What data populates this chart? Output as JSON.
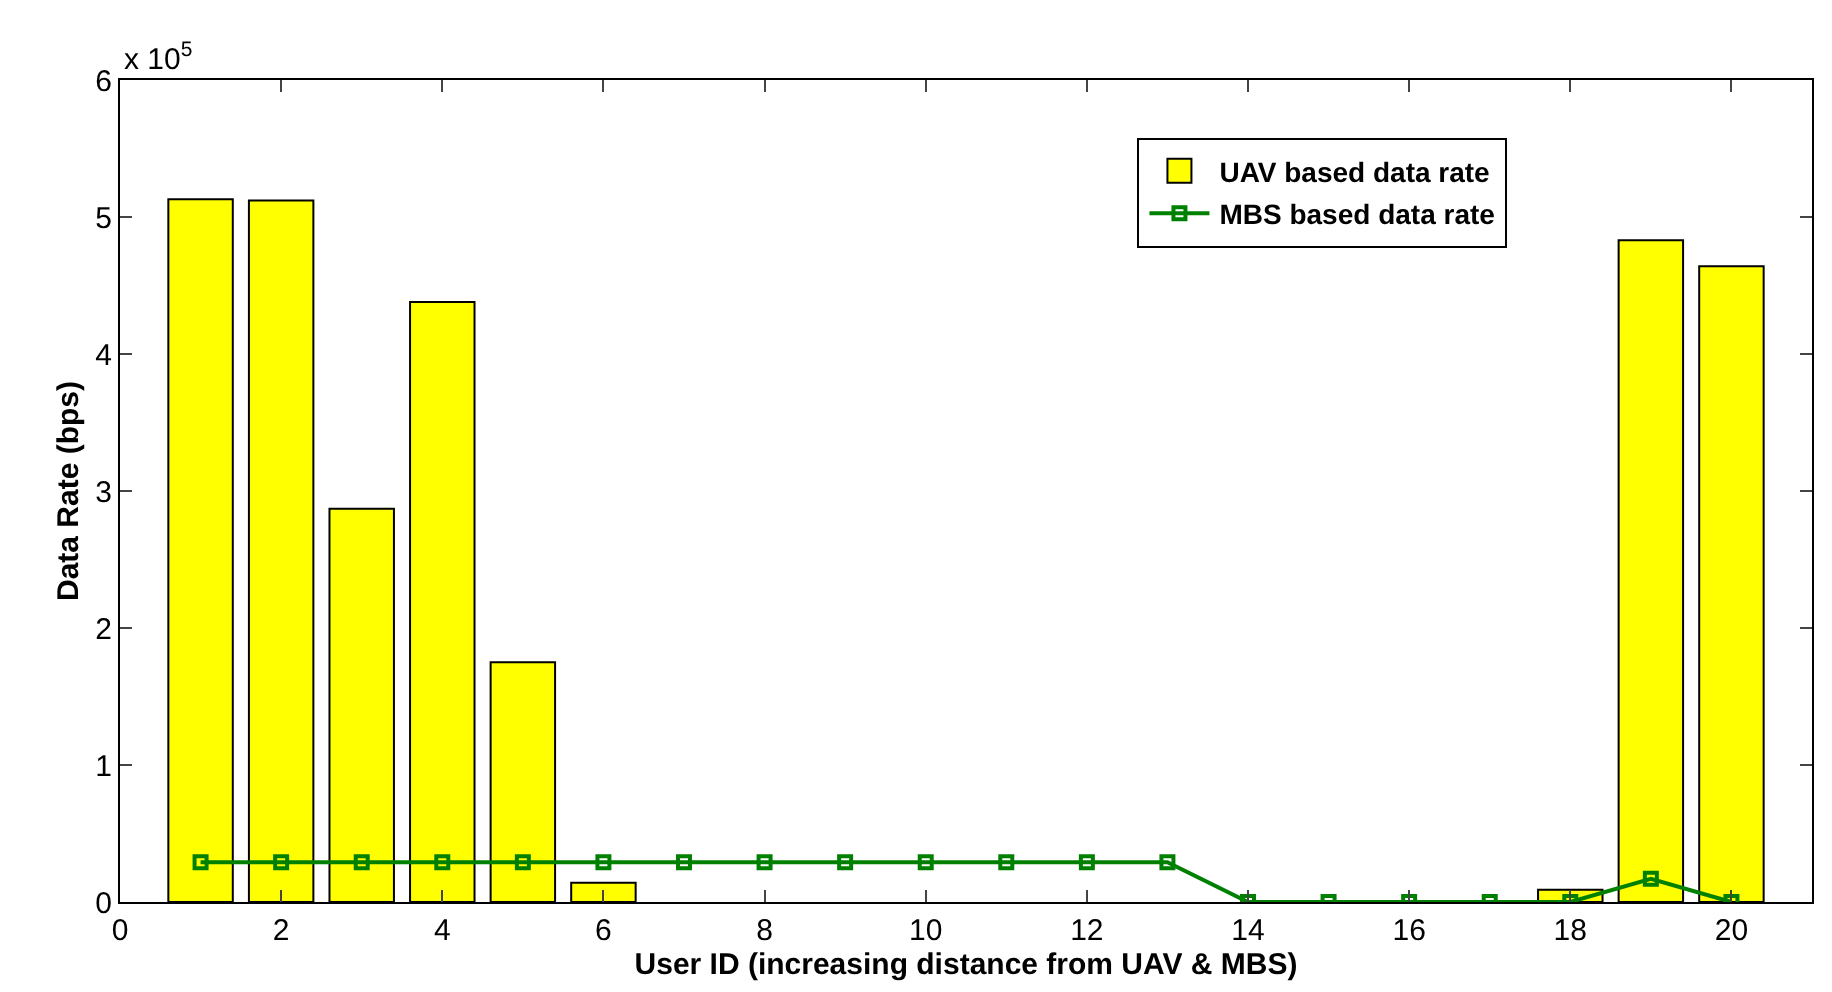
{
  "chart_data": {
    "type": "bar",
    "xlabel": "User ID (increasing distance from UAV & MBS)",
    "ylabel": "Data Rate (bps)",
    "x": [
      1,
      2,
      3,
      4,
      5,
      6,
      7,
      8,
      9,
      10,
      11,
      12,
      13,
      14,
      15,
      16,
      17,
      18,
      19,
      20
    ],
    "series": [
      {
        "name": "UAV based data rate",
        "color": "#ffff00",
        "values": [
          5.13,
          5.12,
          2.87,
          4.38,
          1.75,
          0.14,
          null,
          null,
          null,
          null,
          null,
          null,
          null,
          null,
          null,
          null,
          null,
          0.09,
          4.83,
          4.64
        ]
      },
      {
        "name": "MBS based data rate",
        "type": "line",
        "color": "#008000",
        "marker": "square",
        "line_style": "solid",
        "values": [
          0.29,
          0.29,
          0.29,
          0.29,
          0.29,
          0.29,
          0.29,
          0.29,
          0.29,
          0.29,
          0.29,
          0.29,
          0.29,
          0,
          0,
          0,
          0,
          0,
          0.17,
          0
        ]
      }
    ],
    "annotations": [
      "x 10$^{5}$"
    ],
    "xlim": [
      0,
      21
    ],
    "xticks": [
      0,
      2,
      4,
      6,
      8,
      10,
      12,
      14,
      16,
      18,
      20
    ],
    "ylim": [
      0,
      6
    ],
    "yticks": [
      0,
      1,
      2,
      3,
      4,
      5,
      6
    ],
    "legend": "top right"
  }
}
